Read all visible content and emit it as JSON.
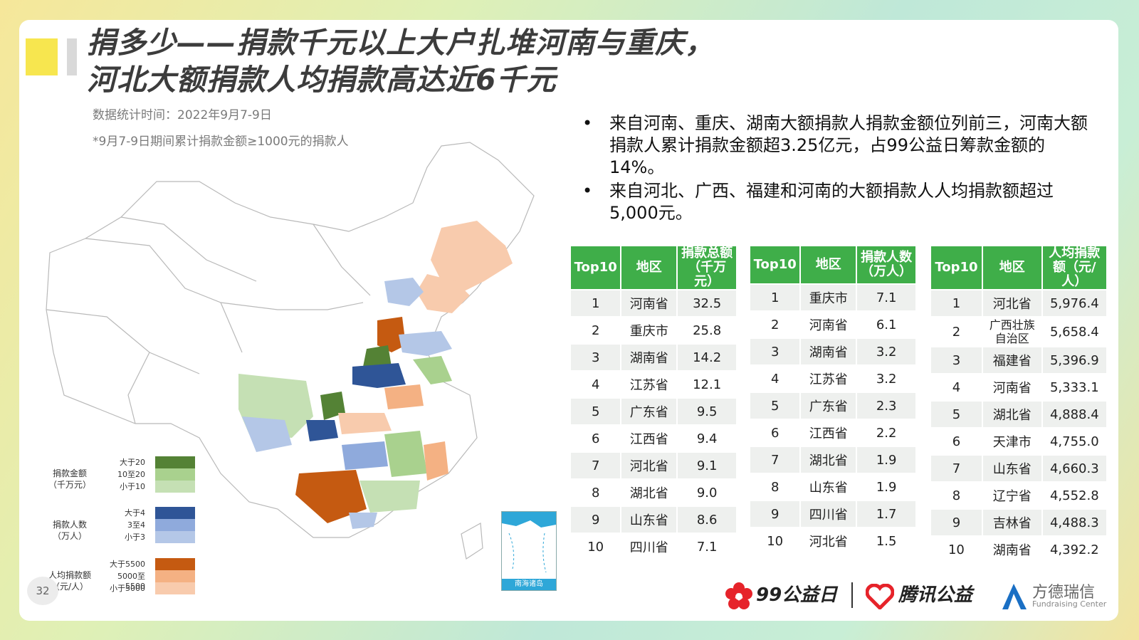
{
  "title_line1": "捐多少——捐款千元以上大户扎堆河南与重庆，",
  "title_line2": "河北大额捐款人均捐款高达近6千元",
  "meta_time": "数据统计时间：2022年9月7-9日",
  "meta_note": "*9月7-9日期间累计捐款金额≥1000元的捐款人",
  "bullets": [
    "来自河南、重庆、湖南大额捐款人捐款金额位列前三，河南大额捐款人累计捐款金额超3.25亿元，占99公益日筹款金额的14%。",
    "来自河北、广西、福建和河南的大额捐款人人均捐款额超过5,000元。"
  ],
  "table_amount": {
    "headers": [
      "Top10",
      "地区",
      "捐款总额\n（千万元）"
    ],
    "rows": [
      [
        "1",
        "河南省",
        "32.5"
      ],
      [
        "2",
        "重庆市",
        "25.8"
      ],
      [
        "3",
        "湖南省",
        "14.2"
      ],
      [
        "4",
        "江苏省",
        "12.1"
      ],
      [
        "5",
        "广东省",
        "9.5"
      ],
      [
        "6",
        "江西省",
        "9.4"
      ],
      [
        "7",
        "河北省",
        "9.1"
      ],
      [
        "8",
        "湖北省",
        "9.0"
      ],
      [
        "9",
        "山东省",
        "8.6"
      ],
      [
        "10",
        "四川省",
        "7.1"
      ]
    ]
  },
  "table_people": {
    "headers": [
      "Top10",
      "地区",
      "捐款人数\n（万人）"
    ],
    "rows": [
      [
        "1",
        "重庆市",
        "7.1"
      ],
      [
        "2",
        "河南省",
        "6.1"
      ],
      [
        "3",
        "湖南省",
        "3.2"
      ],
      [
        "4",
        "江苏省",
        "3.2"
      ],
      [
        "5",
        "广东省",
        "2.3"
      ],
      [
        "6",
        "江西省",
        "2.2"
      ],
      [
        "7",
        "湖北省",
        "1.9"
      ],
      [
        "8",
        "山东省",
        "1.9"
      ],
      [
        "9",
        "四川省",
        "1.7"
      ],
      [
        "10",
        "河北省",
        "1.5"
      ]
    ]
  },
  "table_avg": {
    "headers": [
      "Top10",
      "地区",
      "人均捐款\n额（元/人）"
    ],
    "rows": [
      [
        "1",
        "河北省",
        "5,976.4"
      ],
      [
        "2",
        "广西壮族\n自治区",
        "5,658.4"
      ],
      [
        "3",
        "福建省",
        "5,396.9"
      ],
      [
        "4",
        "河南省",
        "5,333.1"
      ],
      [
        "5",
        "湖北省",
        "4,888.4"
      ],
      [
        "6",
        "天津市",
        "4,755.0"
      ],
      [
        "7",
        "山东省",
        "4,660.3"
      ],
      [
        "8",
        "辽宁省",
        "4,552.8"
      ],
      [
        "9",
        "吉林省",
        "4,488.3"
      ],
      [
        "10",
        "湖南省",
        "4,392.2"
      ]
    ]
  },
  "legend": {
    "amount": {
      "title": "捐款金额\n（千万元）",
      "items": [
        "大于20",
        "10至20",
        "小于10"
      ],
      "colors": [
        "#548235",
        "#a9d18e",
        "#c5e0b4"
      ]
    },
    "people": {
      "title": "捐款人数\n（万人）",
      "items": [
        "大于4",
        "3至4",
        "小于3"
      ],
      "colors": [
        "#2f5597",
        "#8faadc",
        "#b4c7e7"
      ]
    },
    "avg": {
      "title": "人均捐款额\n（元/人）",
      "items": [
        "大于5500",
        "5000至5500",
        "小于5000"
      ],
      "colors": [
        "#c55a11",
        "#f4b183",
        "#f8cbad"
      ]
    }
  },
  "inset_label": "南海诸岛",
  "page_number": "32",
  "footer": {
    "logo1": "99公益日",
    "logo2": "腾讯公益",
    "logo3": "方德瑞信",
    "logo3_sub": "Fundraising Center"
  }
}
